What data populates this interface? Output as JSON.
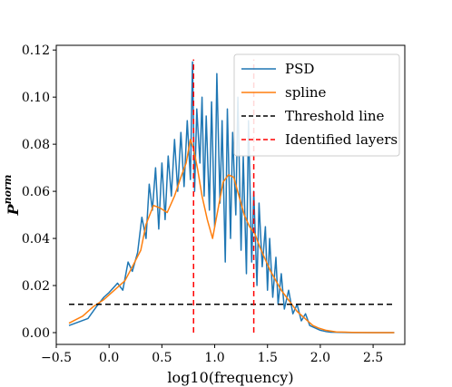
{
  "chart_data": {
    "type": "line",
    "xlabel": "log10(frequency)",
    "ylabel_main": "P",
    "ylabel_sup": "norm",
    "xlim": [
      -0.5,
      2.8
    ],
    "ylim": [
      -0.005,
      0.122
    ],
    "xticks": [
      -0.5,
      0.0,
      0.5,
      1.0,
      1.5,
      2.0,
      2.5
    ],
    "xtick_labels": [
      "−0.5",
      "0.0",
      "0.5",
      "1.0",
      "1.5",
      "2.0",
      "2.5"
    ],
    "yticks": [
      0.0,
      0.02,
      0.04,
      0.06,
      0.08,
      0.1,
      0.12
    ],
    "ytick_labels": [
      "0.00",
      "0.02",
      "0.04",
      "0.06",
      "0.08",
      "0.10",
      "0.12"
    ],
    "legend_position": "top-right",
    "colors": {
      "psd": "#1f77b4",
      "spline": "#ff7f0e",
      "threshold": "#000000",
      "layers": "#ff0000"
    },
    "series": [
      {
        "name": "PSD",
        "style": "solid",
        "x": [
          -0.38,
          -0.2,
          -0.12,
          -0.05,
          0.0,
          0.08,
          0.13,
          0.18,
          0.22,
          0.27,
          0.31,
          0.35,
          0.38,
          0.41,
          0.44,
          0.47,
          0.5,
          0.53,
          0.56,
          0.59,
          0.62,
          0.65,
          0.68,
          0.71,
          0.74,
          0.77,
          0.79,
          0.81,
          0.83,
          0.86,
          0.88,
          0.9,
          0.92,
          0.95,
          0.97,
          1.0,
          1.02,
          1.05,
          1.07,
          1.1,
          1.12,
          1.15,
          1.17,
          1.2,
          1.22,
          1.25,
          1.27,
          1.3,
          1.32,
          1.35,
          1.37,
          1.4,
          1.42,
          1.45,
          1.48,
          1.5,
          1.52,
          1.55,
          1.58,
          1.6,
          1.63,
          1.66,
          1.7,
          1.74,
          1.78,
          1.82,
          1.86,
          1.9,
          1.95,
          2.0,
          2.05,
          2.1,
          2.2,
          2.3,
          2.5,
          2.7
        ],
        "y": [
          0.003,
          0.006,
          0.011,
          0.015,
          0.017,
          0.021,
          0.018,
          0.03,
          0.026,
          0.034,
          0.049,
          0.04,
          0.063,
          0.052,
          0.07,
          0.044,
          0.072,
          0.048,
          0.075,
          0.058,
          0.082,
          0.06,
          0.085,
          0.062,
          0.09,
          0.065,
          0.115,
          0.06,
          0.095,
          0.072,
          0.1,
          0.058,
          0.092,
          0.052,
          0.098,
          0.045,
          0.11,
          0.055,
          0.09,
          0.03,
          0.095,
          0.04,
          0.085,
          0.05,
          0.1,
          0.035,
          0.075,
          0.025,
          0.09,
          0.03,
          0.06,
          0.02,
          0.055,
          0.028,
          0.045,
          0.018,
          0.04,
          0.015,
          0.032,
          0.012,
          0.025,
          0.01,
          0.018,
          0.008,
          0.012,
          0.005,
          0.008,
          0.003,
          0.002,
          0.001,
          0.0005,
          0.0002,
          0.0001,
          0.0,
          0.0,
          0.0
        ]
      },
      {
        "name": "spline",
        "style": "solid",
        "x": [
          -0.38,
          -0.25,
          -0.15,
          -0.05,
          0.05,
          0.15,
          0.22,
          0.3,
          0.35,
          0.42,
          0.48,
          0.55,
          0.62,
          0.68,
          0.73,
          0.77,
          0.8,
          0.84,
          0.88,
          0.93,
          0.98,
          1.03,
          1.08,
          1.13,
          1.18,
          1.23,
          1.28,
          1.33,
          1.38,
          1.43,
          1.48,
          1.53,
          1.58,
          1.63,
          1.68,
          1.73,
          1.78,
          1.83,
          1.88,
          1.93,
          1.98,
          2.05,
          2.15,
          2.3,
          2.5,
          2.7
        ],
        "y": [
          0.004,
          0.007,
          0.011,
          0.014,
          0.018,
          0.022,
          0.028,
          0.035,
          0.046,
          0.054,
          0.053,
          0.051,
          0.058,
          0.066,
          0.072,
          0.082,
          0.078,
          0.069,
          0.058,
          0.048,
          0.04,
          0.052,
          0.064,
          0.067,
          0.066,
          0.058,
          0.05,
          0.045,
          0.042,
          0.036,
          0.031,
          0.026,
          0.022,
          0.018,
          0.015,
          0.012,
          0.009,
          0.007,
          0.005,
          0.003,
          0.002,
          0.001,
          0.0003,
          0.0001,
          0.0,
          0.0
        ]
      },
      {
        "name": "Threshold line",
        "style": "dashed",
        "x": [
          -0.38,
          2.7
        ],
        "y": [
          0.012,
          0.012
        ]
      },
      {
        "name": "Identified layers",
        "style": "dashed",
        "vlines": [
          0.8,
          1.37
        ],
        "y_from": 0.0,
        "y_to": 0.116
      }
    ]
  }
}
